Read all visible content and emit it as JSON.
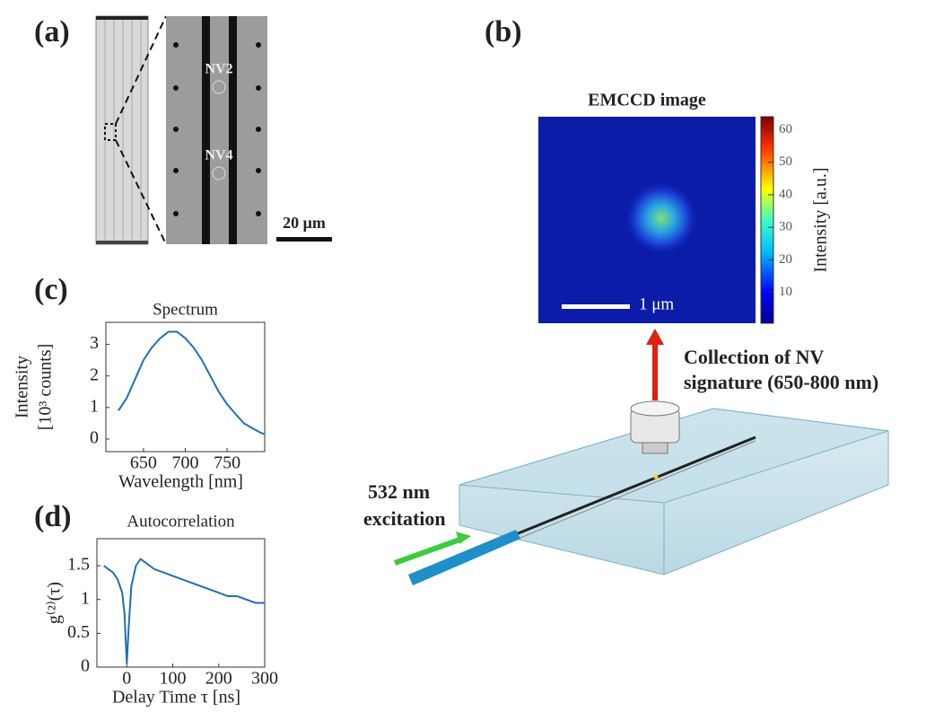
{
  "panel_labels": [
    "(a)",
    "(b)",
    "(c)",
    "(d)"
  ],
  "panel_a": {
    "annotations": [
      "NV2",
      "NV4"
    ],
    "scale_bar": "20 μm"
  },
  "panel_b": {
    "image_title": "EMCCD image",
    "scale_bar": "1 μm",
    "colorbar": {
      "label": "Intensity [a.u.]",
      "lim": [
        0.5,
        64
      ],
      "ticks": [
        10,
        20,
        30,
        40,
        50,
        60
      ]
    },
    "collection_text": [
      "Collection of NV",
      "signature (650-800 nm)"
    ],
    "excitation_text": [
      "532 nm",
      "excitation"
    ]
  },
  "chart_data": [
    {
      "type": "line",
      "title": "Spectrum",
      "xlabel": "Wavelength [nm]",
      "ylabel": [
        "Intensity",
        "[10³ counts]"
      ],
      "color": "#1f6fb5",
      "x": [
        620,
        630,
        640,
        650,
        660,
        670,
        680,
        690,
        700,
        710,
        720,
        730,
        740,
        750,
        760,
        770,
        780,
        790,
        795
      ],
      "values": [
        0.9,
        1.3,
        1.9,
        2.5,
        2.9,
        3.2,
        3.4,
        3.4,
        3.2,
        2.9,
        2.5,
        2.0,
        1.5,
        1.1,
        0.8,
        0.5,
        0.35,
        0.2,
        0.15
      ],
      "xlim": [
        605,
        795
      ],
      "ylim": [
        -0.4,
        3.7
      ],
      "xticks": [
        650,
        700,
        750
      ],
      "yticks": [
        0,
        1,
        2,
        3
      ]
    },
    {
      "type": "line",
      "title": "Autocorrelation",
      "xlabel": "Delay Time τ [ns]",
      "ylabel": [
        "g⁽²⁾(τ)"
      ],
      "color": "#1f6fb5",
      "x": [
        -50,
        -40,
        -30,
        -20,
        -10,
        -5,
        0,
        5,
        10,
        20,
        30,
        40,
        60,
        80,
        100,
        120,
        140,
        160,
        180,
        200,
        220,
        240,
        260,
        280,
        300
      ],
      "values": [
        1.5,
        1.45,
        1.4,
        1.3,
        1.1,
        0.8,
        0.05,
        0.7,
        1.2,
        1.5,
        1.6,
        1.55,
        1.45,
        1.4,
        1.35,
        1.3,
        1.25,
        1.2,
        1.15,
        1.1,
        1.05,
        1.05,
        1.0,
        0.95,
        0.95
      ],
      "xlim": [
        -65,
        300
      ],
      "ylim": [
        0,
        1.9
      ],
      "xticks": [
        0,
        100,
        200,
        300
      ],
      "yticks": [
        0,
        0.5,
        1,
        1.5
      ]
    }
  ]
}
